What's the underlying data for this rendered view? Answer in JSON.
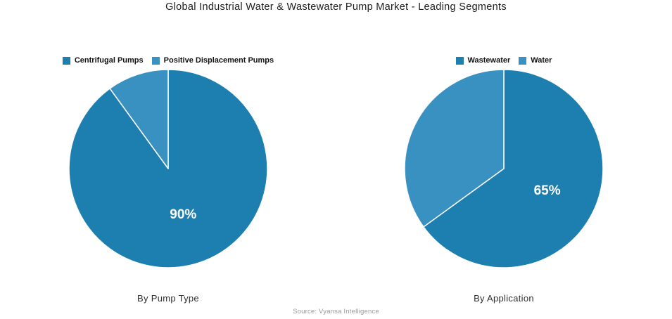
{
  "page": {
    "title": "Global Industrial Water & Wastewater Pump Market - Leading Segments",
    "source": "Source: Vyansa Intelligence"
  },
  "colors": {
    "primary_blue": "#1d7fb0",
    "secondary_blue": "#3991c1",
    "slice_label_text": "#ffffff",
    "title_text": "#1c1c1c",
    "caption_text": "#2e2e2e",
    "source_text": "#999999"
  },
  "chart_data": [
    {
      "type": "pie",
      "title": "By Pump Type",
      "categories": [
        "Centrifugal Pumps",
        "Positive Displacement Pumps"
      ],
      "values": [
        90,
        10
      ],
      "slice_labels": [
        "90%",
        ""
      ],
      "colors": [
        "#1d7fb0",
        "#3991c1"
      ],
      "start_angle_deg": 0,
      "direction": "clockwise",
      "legend_position": "top",
      "label_radius_fraction": 0.49
    },
    {
      "type": "pie",
      "title": "By Application",
      "categories": [
        "Wastewater",
        "Water"
      ],
      "values": [
        65,
        35
      ],
      "slice_labels": [
        "65%",
        ""
      ],
      "colors": [
        "#1d7fb0",
        "#3991c1"
      ],
      "start_angle_deg": 0,
      "direction": "clockwise",
      "legend_position": "top",
      "label_radius_fraction": 0.49
    }
  ]
}
